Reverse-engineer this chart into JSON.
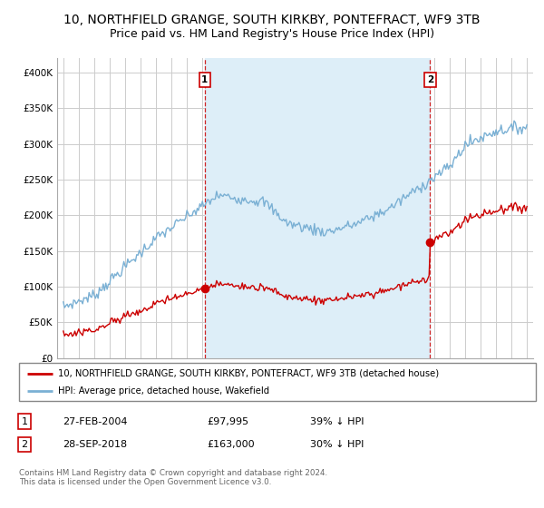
{
  "title1": "10, NORTHFIELD GRANGE, SOUTH KIRKBY, PONTEFRACT, WF9 3TB",
  "title2": "Price paid vs. HM Land Registry's House Price Index (HPI)",
  "ylim": [
    0,
    420000
  ],
  "yticks": [
    0,
    50000,
    100000,
    150000,
    200000,
    250000,
    300000,
    350000,
    400000
  ],
  "ytick_labels": [
    "£0",
    "£50K",
    "£100K",
    "£150K",
    "£200K",
    "£250K",
    "£300K",
    "£350K",
    "£400K"
  ],
  "background_color": "#ffffff",
  "plot_bg_color": "#ffffff",
  "grid_color": "#cccccc",
  "property_color": "#cc0000",
  "hpi_color": "#7ab0d4",
  "shade_color": "#ddeef8",
  "sale1_date": 2004.15,
  "sale1_price": 97995,
  "sale2_date": 2018.74,
  "sale2_price": 163000,
  "legend_property": "10, NORTHFIELD GRANGE, SOUTH KIRKBY, PONTEFRACT, WF9 3TB (detached house)",
  "legend_hpi": "HPI: Average price, detached house, Wakefield",
  "table_row1": [
    "1",
    "27-FEB-2004",
    "£97,995",
    "39% ↓ HPI"
  ],
  "table_row2": [
    "2",
    "28-SEP-2018",
    "£163,000",
    "30% ↓ HPI"
  ],
  "footnote1": "Contains HM Land Registry data © Crown copyright and database right 2024.",
  "footnote2": "This data is licensed under the Open Government Licence v3.0.",
  "title_fontsize": 10,
  "subtitle_fontsize": 9,
  "xmin": 1995,
  "xmax": 2025
}
